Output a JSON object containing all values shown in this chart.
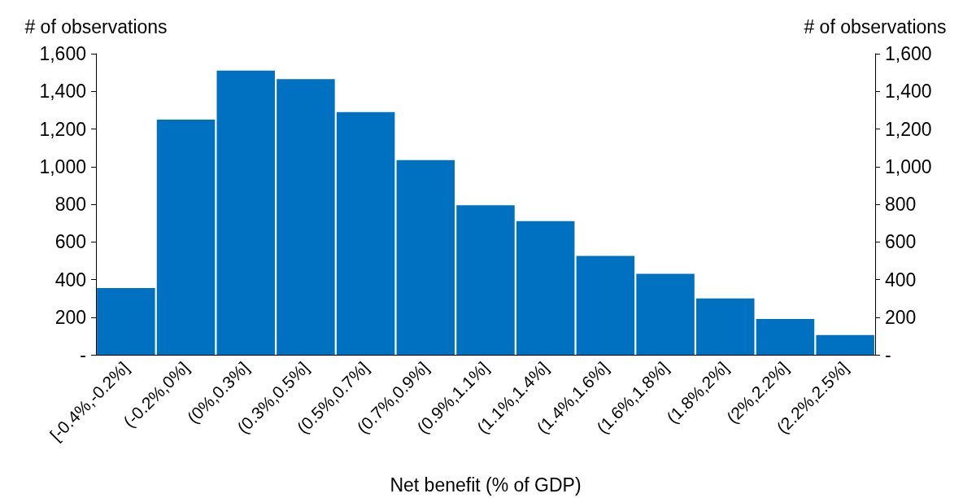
{
  "chart_data": {
    "type": "bar",
    "xlabel": "Net benefit (% of GDP)",
    "ylabel": "# of observations",
    "y2label": "# of observations",
    "categories": [
      "[-0.4%,-0.2%]",
      "(-0.2%,0%]",
      "(0%,0.3%]",
      "(0.3%,0.5%]",
      "(0.5%,0.7%]",
      "(0.7%,0.9%]",
      "(0.9%,1.1%]",
      "(1.1%,1.4%]",
      "(1.4%,1.6%]",
      "(1.6%,1.8%]",
      "(1.8%,2%]",
      "(2%,2.2%]",
      "(2.2%,2.5%]"
    ],
    "values": [
      355,
      1250,
      1510,
      1465,
      1290,
      1035,
      795,
      710,
      525,
      430,
      300,
      190,
      105
    ],
    "color": "#0070c0",
    "ylim": [
      0,
      1600
    ],
    "yticks": [
      {
        "value": 0,
        "label": "-"
      },
      200,
      400,
      600,
      800,
      {
        "value": 1000,
        "label": "1,000"
      },
      {
        "value": 1200,
        "label": "1,200"
      },
      {
        "value": 1400,
        "label": "1,400"
      },
      {
        "value": 1600,
        "label": "1,600"
      }
    ],
    "y2lim": [
      0,
      1600
    ],
    "y2ticks": [
      {
        "value": 0,
        "label": "-"
      },
      200,
      400,
      600,
      800,
      {
        "value": 1000,
        "label": "1,000"
      },
      {
        "value": 1200,
        "label": "1,200"
      },
      {
        "value": 1400,
        "label": "1,400"
      },
      {
        "value": 1600,
        "label": "1,600"
      }
    ]
  }
}
